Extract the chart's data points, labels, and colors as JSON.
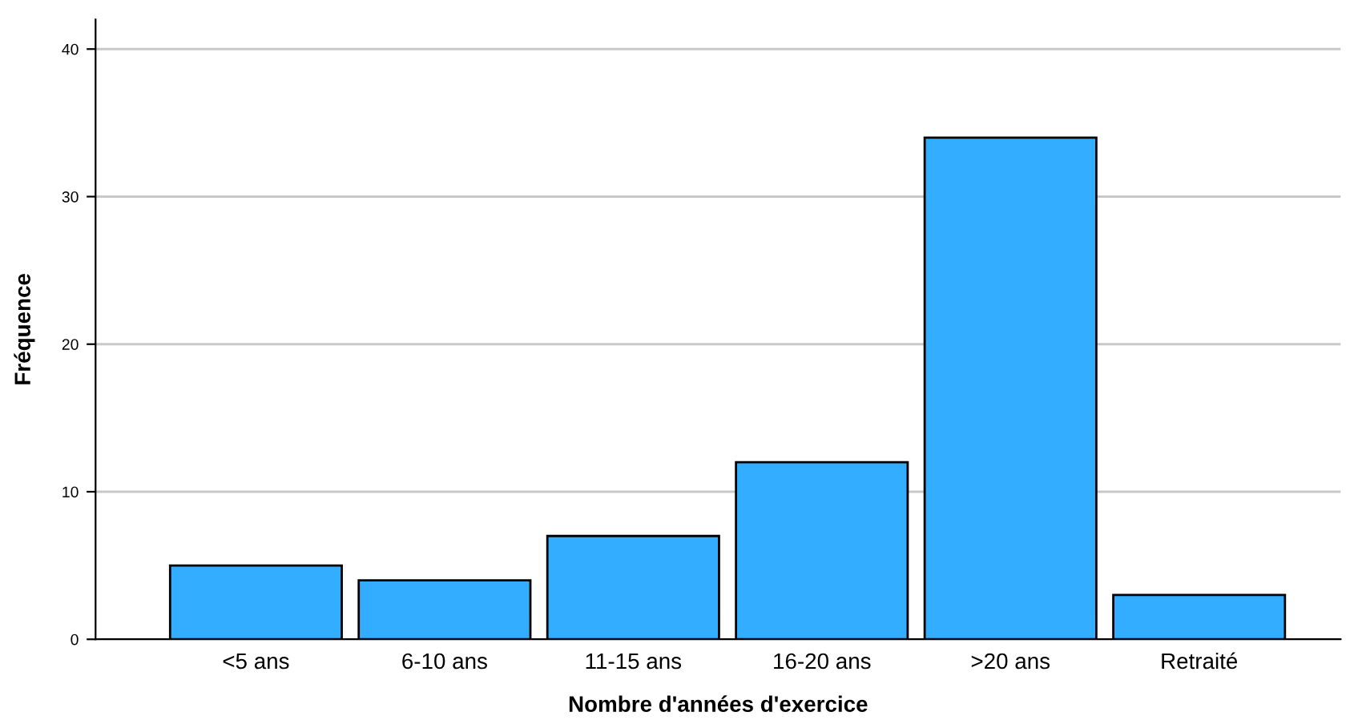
{
  "chart_data": {
    "type": "bar",
    "xlabel": "Nombre d'années d'exercice",
    "ylabel": "Fréquence",
    "categories": [
      "<5 ans",
      "6-10 ans",
      "11-15 ans",
      "16-20 ans",
      ">20 ans",
      "Retraité"
    ],
    "values": [
      5,
      4,
      7,
      12,
      34,
      3
    ],
    "color": "#33adff",
    "ylim": [
      0,
      42
    ],
    "yticks": [
      0,
      10,
      20,
      30,
      40
    ],
    "grid": "y"
  }
}
